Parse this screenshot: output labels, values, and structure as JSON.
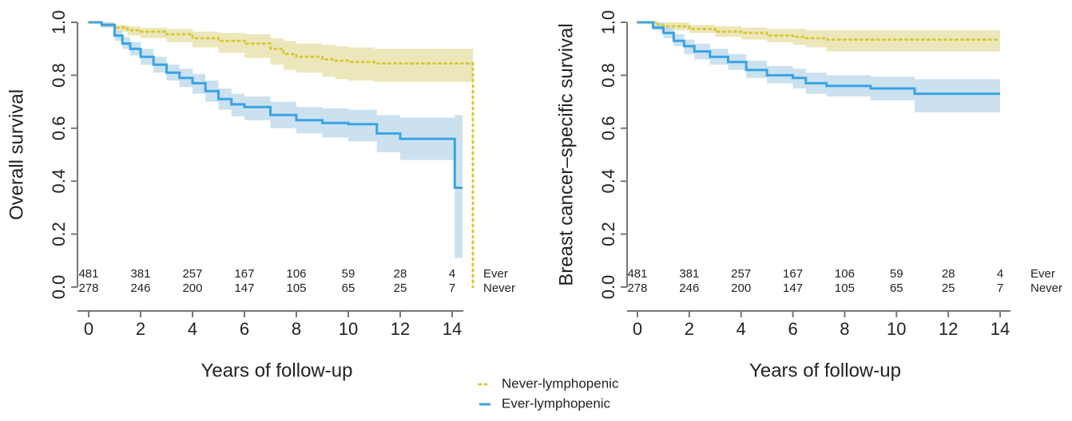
{
  "chart_data": [
    {
      "type": "line",
      "step": true,
      "ylabel": "Overall survival",
      "xlabel": "Years of follow-up",
      "xlim": [
        -0.43,
        14.43
      ],
      "ylim": [
        0,
        1
      ],
      "xticks": [
        0,
        2,
        4,
        6,
        8,
        10,
        12,
        14
      ],
      "yticks": [
        {
          "value": 0,
          "label": "0.0"
        },
        0.2,
        0.4,
        0.6,
        0.8,
        {
          "value": 1,
          "label": "1.0"
        }
      ],
      "legend": "bottom",
      "at_risk": [
        {
          "label": "Ever",
          "values": [
            481,
            381,
            257,
            167,
            106,
            59,
            28,
            4
          ]
        },
        {
          "label": "Never",
          "values": [
            278,
            246,
            200,
            147,
            105,
            65,
            25,
            7
          ]
        }
      ],
      "series": [
        {
          "name": "Never-lymphopenic",
          "color": "#d8c83a",
          "band_color": "#e6dfa3",
          "style": "dotted",
          "x": [
            0,
            0.5,
            1,
            1.5,
            2,
            3,
            4,
            5,
            6,
            7,
            7.5,
            8,
            9,
            9.5,
            10,
            11,
            14.8,
            14.8
          ],
          "values": [
            1,
            0.99,
            0.98,
            0.97,
            0.965,
            0.955,
            0.94,
            0.93,
            0.92,
            0.9,
            0.88,
            0.87,
            0.86,
            0.855,
            0.85,
            0.845,
            0.845,
            0
          ],
          "lower": [
            1,
            0.98,
            0.965,
            0.95,
            0.94,
            0.925,
            0.905,
            0.885,
            0.865,
            0.84,
            0.82,
            0.81,
            0.795,
            0.785,
            0.78,
            0.775,
            0.775,
            null
          ],
          "upper": [
            1,
            1,
            0.99,
            0.985,
            0.98,
            0.975,
            0.965,
            0.96,
            0.955,
            0.94,
            0.93,
            0.92,
            0.915,
            0.91,
            0.905,
            0.9,
            0.9,
            null
          ]
        },
        {
          "name": "Ever-lymphopenic",
          "color": "#3aa3e3",
          "band_color": "#b9d7eb",
          "style": "solid",
          "x": [
            0,
            0.5,
            1,
            1.3,
            1.6,
            2,
            2.5,
            3,
            3.5,
            4,
            4.5,
            5,
            5.5,
            6,
            7,
            8,
            9,
            10,
            11.1,
            12,
            14.1,
            14.1,
            14.4
          ],
          "values": [
            1,
            0.99,
            0.95,
            0.92,
            0.9,
            0.87,
            0.84,
            0.81,
            0.79,
            0.77,
            0.74,
            0.71,
            0.69,
            0.68,
            0.65,
            0.63,
            0.62,
            0.615,
            0.58,
            0.56,
            0.56,
            0.375,
            0.375
          ],
          "lower": [
            1,
            0.98,
            0.93,
            0.9,
            0.875,
            0.84,
            0.81,
            0.78,
            0.755,
            0.73,
            0.7,
            0.67,
            0.645,
            0.63,
            0.6,
            0.58,
            0.565,
            0.55,
            0.51,
            0.48,
            0.48,
            0.11,
            0.11
          ],
          "upper": [
            1,
            1,
            0.97,
            0.945,
            0.925,
            0.9,
            0.87,
            0.84,
            0.825,
            0.805,
            0.78,
            0.75,
            0.73,
            0.72,
            0.7,
            0.68,
            0.675,
            0.67,
            0.65,
            0.64,
            0.64,
            0.65,
            0.65
          ]
        }
      ]
    },
    {
      "type": "line",
      "step": true,
      "ylabel": "Breast cancer–specific survival",
      "xlabel": "Years of follow-up",
      "xlim": [
        -0.4,
        14.4
      ],
      "ylim": [
        0,
        1
      ],
      "xticks": [
        0,
        2,
        4,
        6,
        8,
        10,
        12,
        14
      ],
      "yticks": [
        {
          "value": 0,
          "label": "0.0"
        },
        0.2,
        0.4,
        0.6,
        0.8,
        {
          "value": 1,
          "label": "1.0"
        }
      ],
      "at_risk": [
        {
          "label": "Ever",
          "values": [
            481,
            381,
            257,
            167,
            106,
            59,
            28,
            4
          ]
        },
        {
          "label": "Never",
          "values": [
            278,
            246,
            200,
            147,
            105,
            65,
            25,
            7
          ]
        }
      ],
      "series": [
        {
          "color": "#d8c83a",
          "band_color": "#e6dfa3",
          "style": "dotted",
          "x": [
            0,
            0.8,
            1,
            2,
            3,
            4,
            5,
            6,
            6.5,
            7.3,
            14
          ],
          "values": [
            1,
            0.99,
            0.985,
            0.975,
            0.965,
            0.96,
            0.95,
            0.945,
            0.94,
            0.935,
            0.935
          ],
          "lower": [
            1,
            0.98,
            0.97,
            0.96,
            0.945,
            0.935,
            0.925,
            0.915,
            0.905,
            0.89,
            0.89
          ],
          "upper": [
            1,
            1,
            1,
            0.99,
            0.985,
            0.98,
            0.975,
            0.975,
            0.97,
            0.97,
            0.97
          ]
        },
        {
          "color": "#3aa3e3",
          "band_color": "#b9d7eb",
          "style": "solid",
          "x": [
            0,
            0.6,
            1,
            1.4,
            1.8,
            2.2,
            2.8,
            3.5,
            4.2,
            5,
            6,
            6.5,
            7.3,
            9,
            10.7,
            14
          ],
          "values": [
            1,
            0.98,
            0.96,
            0.93,
            0.91,
            0.89,
            0.87,
            0.85,
            0.82,
            0.8,
            0.79,
            0.77,
            0.76,
            0.75,
            0.73,
            0.73
          ],
          "lower": [
            1,
            0.97,
            0.94,
            0.91,
            0.88,
            0.86,
            0.84,
            0.82,
            0.79,
            0.77,
            0.75,
            0.73,
            0.72,
            0.705,
            0.66,
            0.66
          ],
          "upper": [
            1,
            1,
            0.98,
            0.955,
            0.935,
            0.92,
            0.9,
            0.88,
            0.855,
            0.835,
            0.825,
            0.81,
            0.8,
            0.795,
            0.785,
            0.785
          ]
        }
      ]
    }
  ]
}
